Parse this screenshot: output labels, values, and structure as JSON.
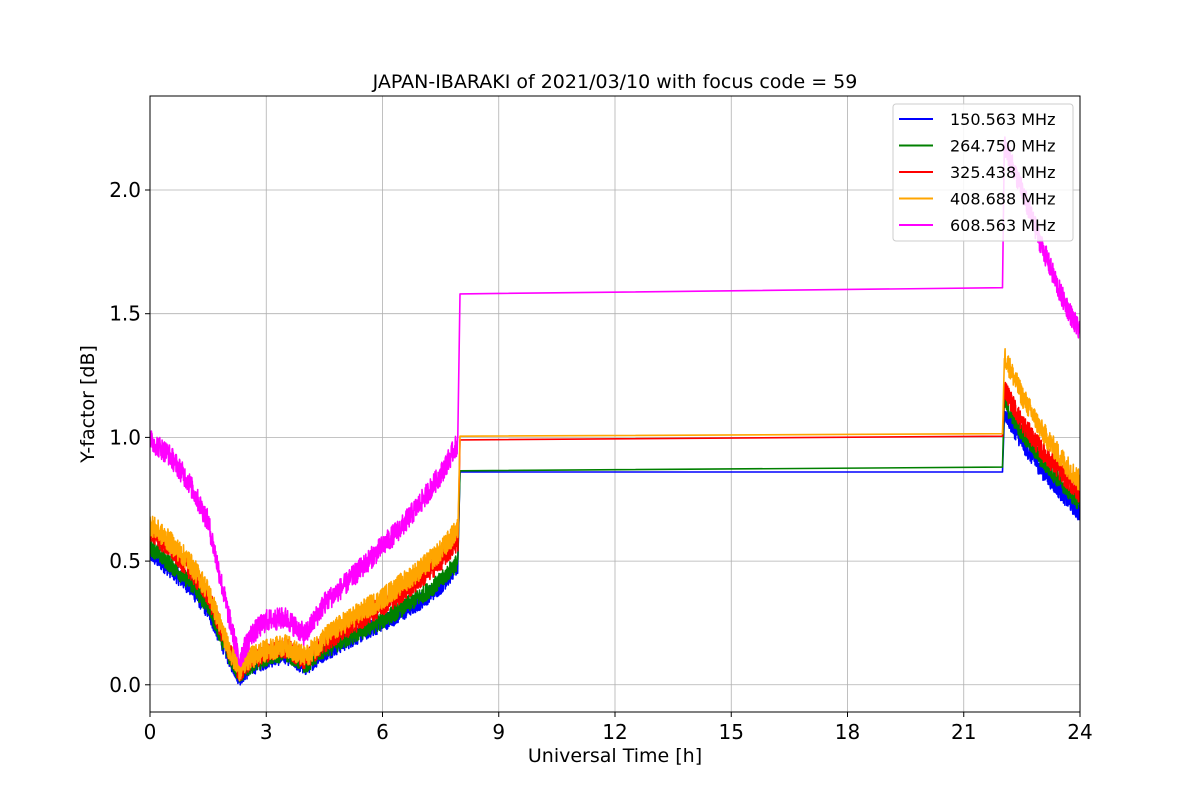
{
  "chart_data": {
    "type": "line",
    "title": "JAPAN-IBARAKI of 2021/03/10 with focus code = 59",
    "xlabel": "Universal Time [h]",
    "ylabel": "Y-factor [dB]",
    "xlim": [
      0,
      24
    ],
    "ylim": [
      -0.11,
      2.38
    ],
    "xticks": [
      0,
      3,
      6,
      9,
      12,
      15,
      18,
      21,
      24
    ],
    "yticks": [
      0.0,
      0.5,
      1.0,
      1.5,
      2.0
    ],
    "xtick_labels": [
      "0",
      "3",
      "6",
      "9",
      "12",
      "15",
      "18",
      "21",
      "24"
    ],
    "ytick_labels": [
      "0.0",
      "0.5",
      "1.0",
      "1.5",
      "2.0"
    ],
    "grid": true,
    "legend_position": "top-right",
    "series": [
      {
        "name": "150.563 MHz",
        "color": "#0000ff",
        "noise": 0.035,
        "x": [
          0,
          0.5,
          1.0,
          1.5,
          2.0,
          2.3,
          2.6,
          3.0,
          3.5,
          4.0,
          4.5,
          5.0,
          5.5,
          6.0,
          6.5,
          7.0,
          7.5,
          7.95,
          8.0,
          22.0,
          22.05,
          22.5,
          23.0,
          23.5,
          24.0
        ],
        "y": [
          0.53,
          0.47,
          0.4,
          0.3,
          0.12,
          0.03,
          0.07,
          0.1,
          0.12,
          0.07,
          0.13,
          0.17,
          0.21,
          0.25,
          0.29,
          0.34,
          0.4,
          0.48,
          0.86,
          0.86,
          1.1,
          0.98,
          0.87,
          0.78,
          0.69
        ]
      },
      {
        "name": "264.750 MHz",
        "color": "#008000",
        "noise": 0.035,
        "x": [
          0,
          0.5,
          1.0,
          1.5,
          2.0,
          2.3,
          2.6,
          3.0,
          3.5,
          4.0,
          4.5,
          5.0,
          5.5,
          6.0,
          6.5,
          7.0,
          7.5,
          7.95,
          8.0,
          22.0,
          22.05,
          22.5,
          23.0,
          23.5,
          24.0
        ],
        "y": [
          0.56,
          0.49,
          0.42,
          0.32,
          0.13,
          0.04,
          0.08,
          0.11,
          0.13,
          0.08,
          0.14,
          0.18,
          0.22,
          0.26,
          0.31,
          0.36,
          0.42,
          0.5,
          0.865,
          0.88,
          1.14,
          1.02,
          0.91,
          0.82,
          0.73
        ]
      },
      {
        "name": "325.438 MHz",
        "color": "#ff0000",
        "noise": 0.04,
        "x": [
          0,
          0.5,
          1.0,
          1.5,
          2.0,
          2.3,
          2.6,
          3.0,
          3.5,
          4.0,
          4.5,
          5.0,
          5.5,
          6.0,
          6.5,
          7.0,
          7.5,
          7.95,
          8.0,
          22.0,
          22.05,
          22.5,
          23.0,
          23.5,
          24.0
        ],
        "y": [
          0.62,
          0.55,
          0.47,
          0.36,
          0.15,
          0.05,
          0.1,
          0.13,
          0.15,
          0.1,
          0.17,
          0.22,
          0.27,
          0.32,
          0.37,
          0.43,
          0.5,
          0.58,
          0.99,
          1.005,
          1.2,
          1.06,
          0.95,
          0.86,
          0.77
        ]
      },
      {
        "name": "408.688 MHz",
        "color": "#ffa500",
        "noise": 0.045,
        "x": [
          0,
          0.5,
          1.0,
          1.5,
          2.0,
          2.3,
          2.6,
          3.0,
          3.5,
          4.0,
          4.5,
          5.0,
          5.5,
          6.0,
          6.5,
          7.0,
          7.5,
          7.95,
          8.0,
          22.0,
          22.05,
          22.5,
          23.0,
          23.5,
          24.0
        ],
        "y": [
          0.65,
          0.58,
          0.5,
          0.38,
          0.16,
          0.06,
          0.11,
          0.14,
          0.16,
          0.11,
          0.19,
          0.25,
          0.3,
          0.35,
          0.41,
          0.47,
          0.54,
          0.63,
          1.005,
          1.015,
          1.33,
          1.17,
          1.03,
          0.92,
          0.82
        ]
      },
      {
        "name": "608.563 MHz",
        "color": "#ff00ff",
        "noise": 0.045,
        "x": [
          0,
          0.5,
          1.0,
          1.5,
          2.0,
          2.3,
          2.6,
          3.0,
          3.5,
          4.0,
          4.5,
          5.0,
          5.5,
          6.0,
          6.5,
          7.0,
          7.5,
          7.95,
          8.0,
          22.0,
          22.05,
          22.5,
          23.0,
          23.5,
          24.0
        ],
        "y": [
          0.99,
          0.93,
          0.82,
          0.66,
          0.3,
          0.1,
          0.2,
          0.26,
          0.27,
          0.2,
          0.33,
          0.4,
          0.48,
          0.56,
          0.64,
          0.74,
          0.85,
          0.98,
          1.58,
          1.605,
          2.18,
          2.0,
          1.78,
          1.58,
          1.42
        ]
      }
    ]
  }
}
